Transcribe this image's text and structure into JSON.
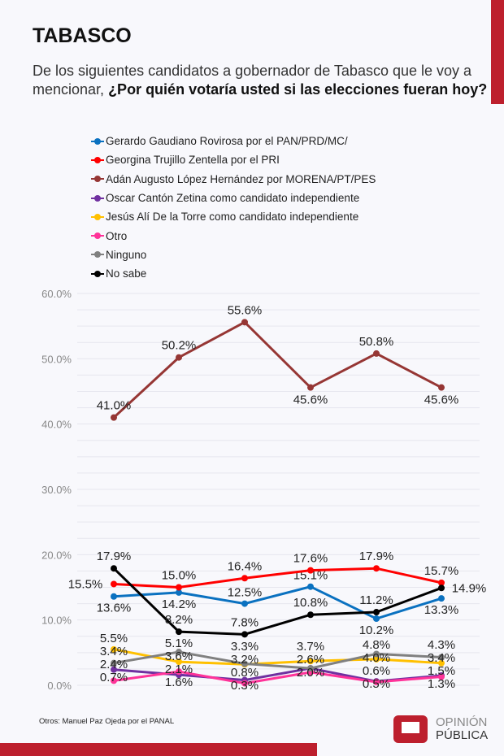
{
  "title": "TABASCO",
  "question_plain": "De los siguientes candidatos a gobernador de Tabasco que le voy a mencionar, ",
  "question_bold": "¿Por quién votaría usted si las elecciones fueran hoy?",
  "footnote": "Otros: Manuel Paz Ojeda por el PANAL",
  "logo": {
    "line1": "OPINIÓN",
    "line2": "PÚBLICA"
  },
  "chart_data": {
    "type": "line",
    "x": [
      1,
      2,
      3,
      4,
      5,
      6
    ],
    "ylim": [
      0,
      60
    ],
    "yticks": [
      "0.0%",
      "10.0%",
      "20.0%",
      "30.0%",
      "40.0%",
      "50.0%",
      "60.0%"
    ],
    "ytick_values": [
      0,
      10,
      20,
      30,
      40,
      50,
      60
    ],
    "legend_placement": "top-left",
    "series": [
      {
        "name": "Gerardo Gaudiano Rovirosa por el PAN/PRD/MC/",
        "color": "#0a71c0",
        "values": [
          13.6,
          14.2,
          12.5,
          15.1,
          10.2,
          13.3
        ],
        "labels": [
          "13.6%",
          "14.2%",
          "12.5%",
          "15.1%",
          "10.2%",
          "13.3%"
        ]
      },
      {
        "name": "Georgina Trujillo Zentella por el PRI",
        "color": "#ff0000",
        "values": [
          15.5,
          15.0,
          16.4,
          17.6,
          17.9,
          15.7
        ],
        "labels": [
          "15.5%",
          "15.0%",
          "16.4%",
          "17.6%",
          "17.9%",
          "15.7%"
        ]
      },
      {
        "name": "Adán Augusto López Hernández por MORENA/PT/PES",
        "color": "#963634",
        "values": [
          41.0,
          50.2,
          55.6,
          45.6,
          50.8,
          45.6
        ],
        "labels": [
          "41.0%",
          "50.2%",
          "55.6%",
          "45.6%",
          "50.8%",
          "45.6%"
        ]
      },
      {
        "name": "Oscar Cantón Zetina como candidato independiente",
        "color": "#7030a0",
        "values": [
          2.4,
          1.6,
          0.8,
          2.6,
          0.6,
          1.5
        ],
        "labels": [
          "2.4%",
          "1.6%",
          "0.8%",
          "",
          "0.6%",
          "1.5%"
        ]
      },
      {
        "name": "Jesús Alí De la Torre como candidato independiente",
        "color": "#ffc000",
        "values": [
          5.5,
          3.6,
          3.2,
          3.7,
          4.0,
          3.4
        ],
        "labels": [
          "5.5%",
          "3.6%",
          "3.2%",
          "3.7%",
          "4.0%",
          "3.4%"
        ]
      },
      {
        "name": "Otro",
        "color": "#ff3399",
        "values": [
          0.7,
          2.1,
          0.3,
          2.0,
          0.5,
          1.3
        ],
        "labels": [
          "0.7%",
          "2.1%",
          "0.3%",
          "2.0%",
          "0.5%",
          "1.3%"
        ]
      },
      {
        "name": "Ninguno",
        "color": "#808080",
        "values": [
          3.4,
          5.1,
          3.3,
          2.6,
          4.8,
          4.3
        ],
        "labels": [
          "3.4%",
          "5.1%",
          "3.3%",
          "2.6%",
          "4.8%",
          "4.3%"
        ]
      },
      {
        "name": "No sabe",
        "color": "#000000",
        "values": [
          17.9,
          8.2,
          7.8,
          10.8,
          11.2,
          14.9
        ],
        "labels": [
          "17.9%",
          "8.2%",
          "7.8%",
          "10.8%",
          "11.2%",
          "14.9%"
        ]
      }
    ]
  }
}
